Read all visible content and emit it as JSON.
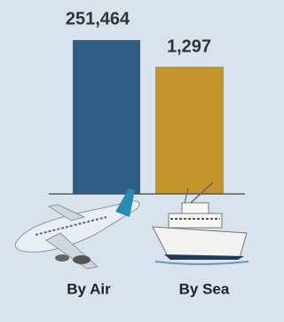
{
  "items": [
    {
      "value": "251,464",
      "label": "By Air"
    },
    {
      "value": "1,297",
      "label": "By Sea"
    }
  ]
}
